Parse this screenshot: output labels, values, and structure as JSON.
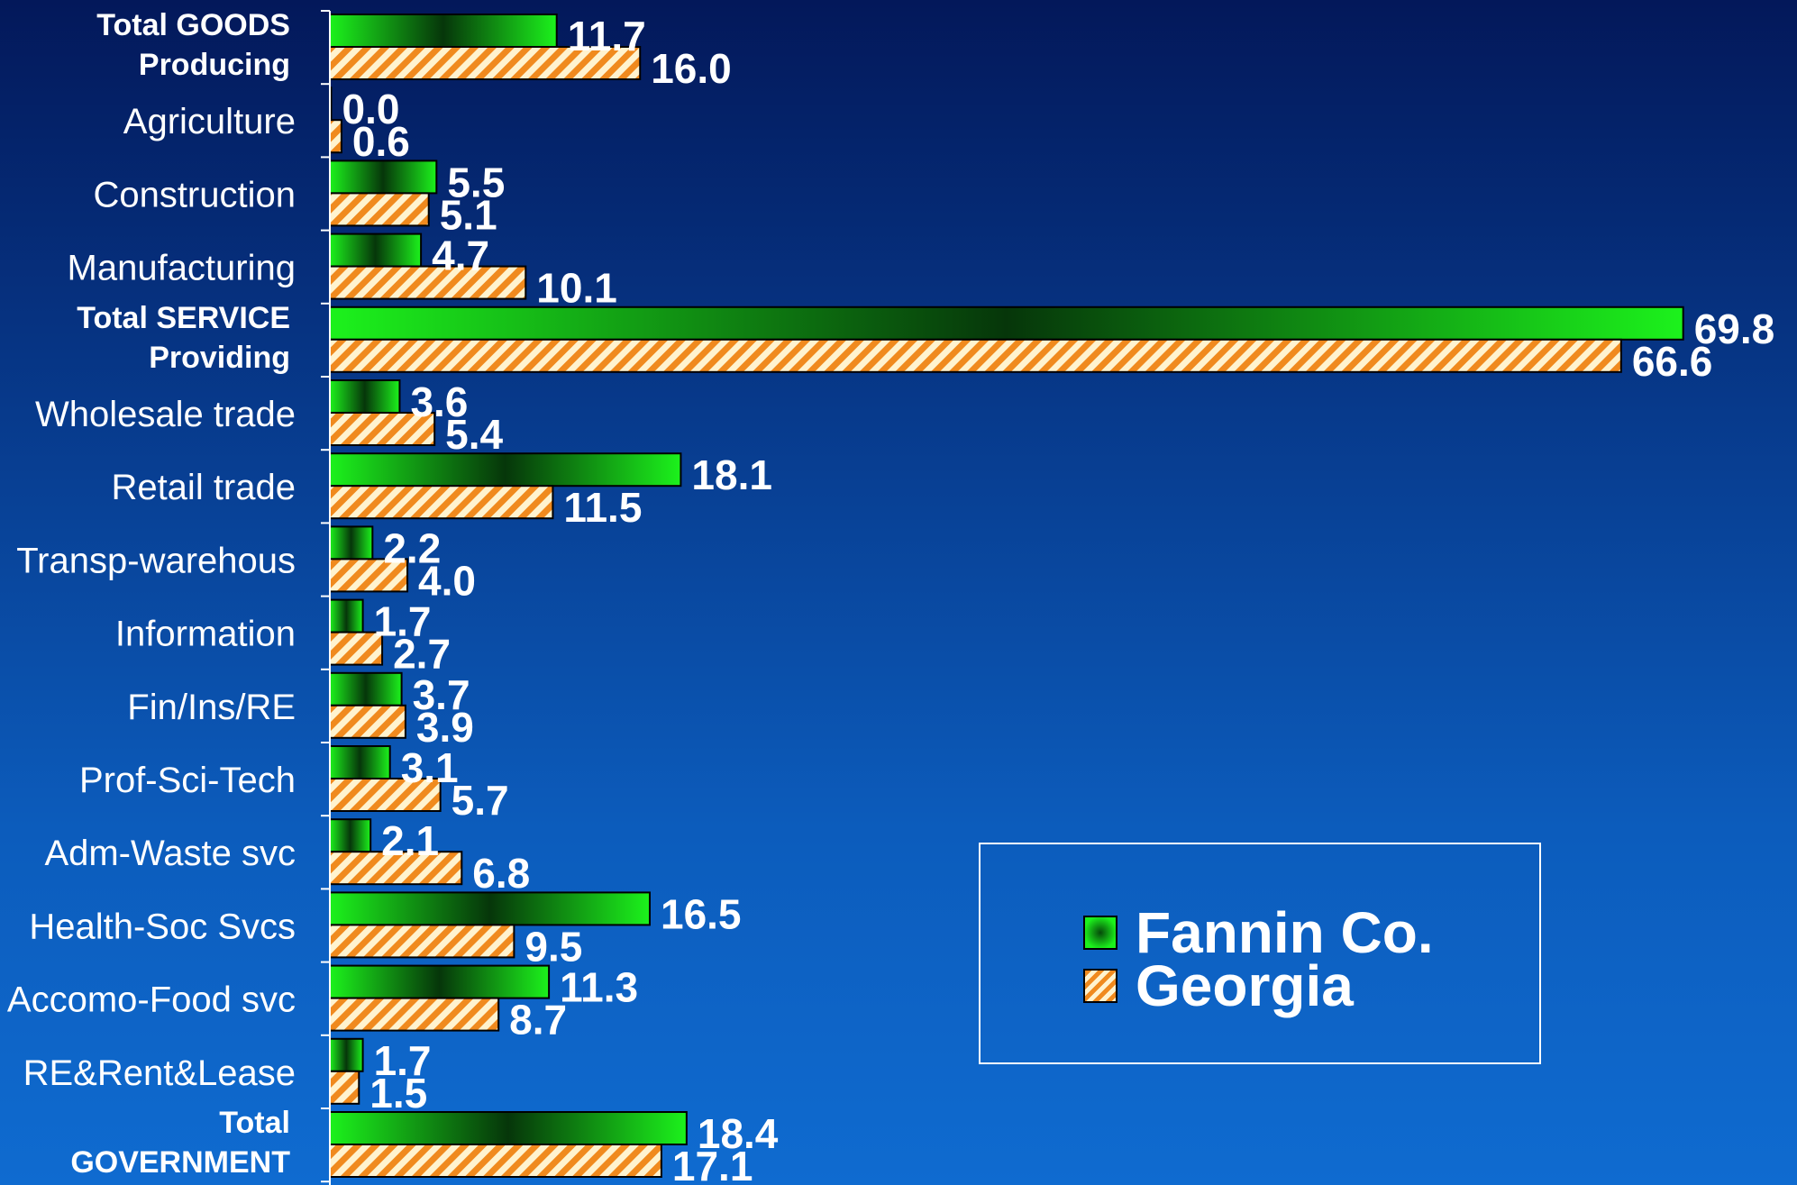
{
  "chart_data": {
    "type": "bar",
    "orientation": "horizontal",
    "title": "",
    "xlabel": "",
    "ylabel": "",
    "xlim": [
      0,
      70
    ],
    "grid": false,
    "legend_position": "bottom-right",
    "categories": [
      "Total GOODS Producing",
      "Agriculture",
      "Construction",
      "Manufacturing",
      "Total SERVICE Providing",
      "Wholesale trade",
      "Retail trade",
      "Transp-warehous",
      "Information",
      "Fin/Ins/RE",
      "Prof-Sci-Tech",
      "Adm-Waste svc",
      "Health-Soc Svcs",
      "Accomo-Food svc",
      "RE&Rent&Lease",
      "Total GOVERNMENT"
    ],
    "category_label_lines": [
      [
        "Total GOODS",
        "Producing"
      ],
      [
        "Agriculture"
      ],
      [
        "Construction"
      ],
      [
        "Manufacturing"
      ],
      [
        "Total SERVICE",
        "Providing"
      ],
      [
        "Wholesale trade"
      ],
      [
        "Retail trade"
      ],
      [
        "Transp-warehous"
      ],
      [
        "Information"
      ],
      [
        "Fin/Ins/RE"
      ],
      [
        "Prof-Sci-Tech"
      ],
      [
        "Adm-Waste svc"
      ],
      [
        "Health-Soc Svcs"
      ],
      [
        "Accomo-Food svc"
      ],
      [
        "RE&Rent&Lease"
      ],
      [
        "Total",
        "GOVERNMENT"
      ]
    ],
    "category_label_colors": [
      "#1fc8a0",
      "#ffffff",
      "#ffffff",
      "#ffffff",
      "#f6a13a",
      "#ffffff",
      "#ffffff",
      "#ffffff",
      "#ffffff",
      "#ffffff",
      "#ffffff",
      "#ffffff",
      "#ffffff",
      "#ffffff",
      "#ffffff",
      "#19d2e6"
    ],
    "series": [
      {
        "name": "Fannin Co.",
        "color": "#11cc11",
        "values": [
          11.7,
          0.0,
          5.5,
          4.7,
          69.8,
          3.6,
          18.1,
          2.2,
          1.7,
          3.7,
          3.1,
          2.1,
          16.5,
          11.3,
          1.7,
          18.4
        ],
        "value_labels": [
          "11.7",
          "0.0",
          "5.5",
          "4.7",
          "69.8",
          "3.6",
          "18.1",
          "2.2",
          "1.7",
          "3.7",
          "3.1",
          "2.1",
          "16.5",
          "11.3",
          "1.7",
          "18.4"
        ]
      },
      {
        "name": "Georgia",
        "color": "#f59a2c",
        "values": [
          16.0,
          0.6,
          5.1,
          10.1,
          66.6,
          5.4,
          11.5,
          4.0,
          2.7,
          3.9,
          5.7,
          6.8,
          9.5,
          8.7,
          1.5,
          17.1
        ],
        "value_labels": [
          "16.0",
          "0.6",
          "5.1",
          "10.1",
          "66.6",
          "5.4",
          "11.5",
          "4.0",
          "2.7",
          "3.9",
          "5.7",
          "6.8",
          "9.5",
          "8.7",
          "1.5",
          "17.1"
        ]
      }
    ]
  },
  "legend": {
    "items": [
      {
        "label": "Fannin Co."
      },
      {
        "label": "Georgia"
      }
    ]
  }
}
